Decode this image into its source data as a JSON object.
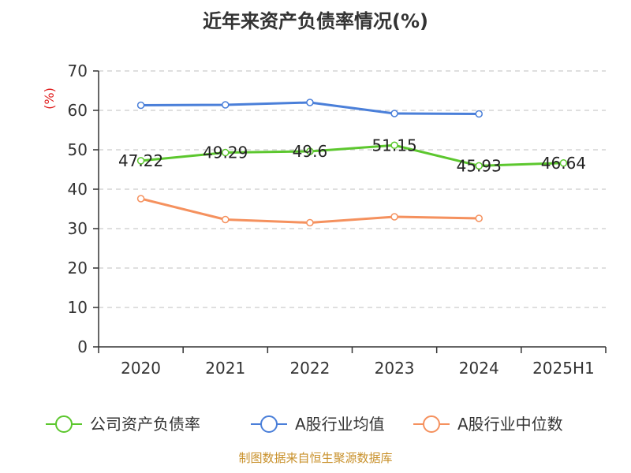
{
  "chart_data": {
    "type": "line",
    "title": "近年来资产负债率情况(%)",
    "ylabel": "(%)",
    "xlabel": "",
    "ylim": [
      0,
      70
    ],
    "yticks": [
      "0",
      "10",
      "20",
      "30",
      "40",
      "50",
      "60",
      "70"
    ],
    "categories": [
      "2020",
      "2021",
      "2022",
      "2023",
      "2024",
      "2025H1"
    ],
    "grid": true,
    "legend_position": "bottom",
    "series": [
      {
        "name": "公司资产负债率",
        "color": "#5cc72e",
        "values": [
          47.22,
          49.29,
          49.6,
          51.15,
          45.93,
          46.64
        ],
        "labels": [
          "47.22",
          "49.29",
          "49.6",
          "51.15",
          "45.93",
          "46.64"
        ]
      },
      {
        "name": "A股行业均值",
        "color": "#4a7fd9",
        "values": [
          61.3,
          61.4,
          62.0,
          59.2,
          59.1,
          null
        ]
      },
      {
        "name": "A股行业中位数",
        "color": "#f5915e",
        "values": [
          37.6,
          32.3,
          31.5,
          33.0,
          32.6,
          null
        ]
      }
    ],
    "source": "制图数据来自恒生聚源数据库"
  }
}
